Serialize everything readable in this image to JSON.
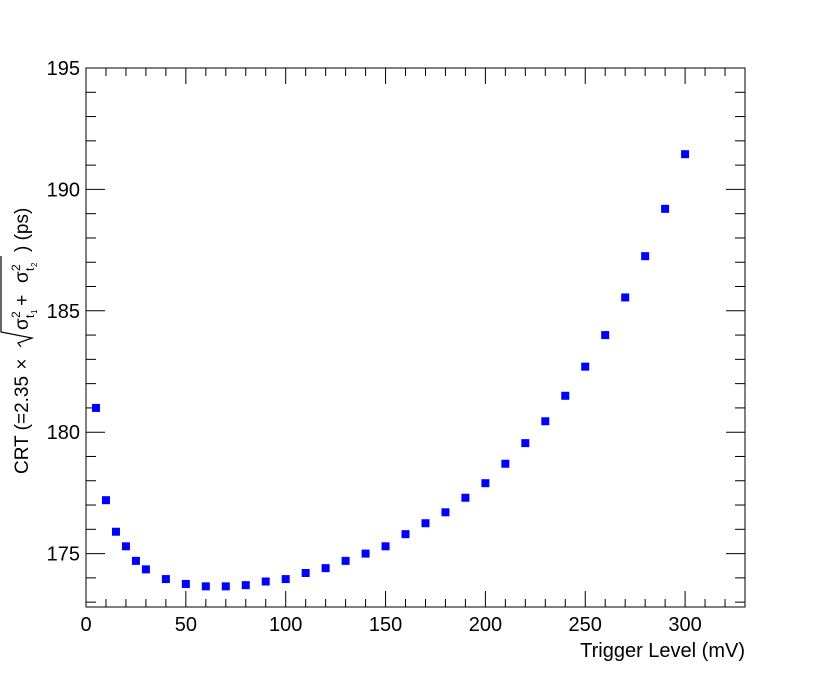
{
  "chart_data": {
    "type": "scatter",
    "xlabel": "Trigger Level (mV)",
    "ylabel": {
      "prefix": "CRT (=2.35",
      "times": "×",
      "sigma": "σ",
      "sq": "2",
      "t": "t",
      "sub1": "1",
      "sub2": "2",
      "plus": " + ",
      "suffix": ") (ps)"
    },
    "xlim": [
      0,
      330
    ],
    "ylim": [
      172.8,
      195
    ],
    "xticks": [
      0,
      50,
      100,
      150,
      200,
      250,
      300
    ],
    "yticks": [
      175,
      180,
      185,
      190,
      195
    ],
    "grid": false,
    "marker_color": "#0000ff",
    "series": [
      {
        "x": [
          5,
          10,
          15,
          20,
          25,
          30,
          40,
          50,
          60,
          70,
          80,
          90,
          100,
          110,
          120,
          130,
          140,
          150,
          160,
          170,
          180,
          190,
          200,
          210,
          220,
          230,
          240,
          250,
          260,
          270,
          280,
          290,
          300
        ],
        "y": [
          181.0,
          177.2,
          175.9,
          175.3,
          174.7,
          174.35,
          173.95,
          173.75,
          173.65,
          173.65,
          173.7,
          173.85,
          173.95,
          174.2,
          174.4,
          174.7,
          175.0,
          175.3,
          175.8,
          176.25,
          176.7,
          177.3,
          177.9,
          178.7,
          179.55,
          180.45,
          181.5,
          182.7,
          184.0,
          185.55,
          187.25,
          189.2,
          191.45
        ]
      }
    ]
  }
}
